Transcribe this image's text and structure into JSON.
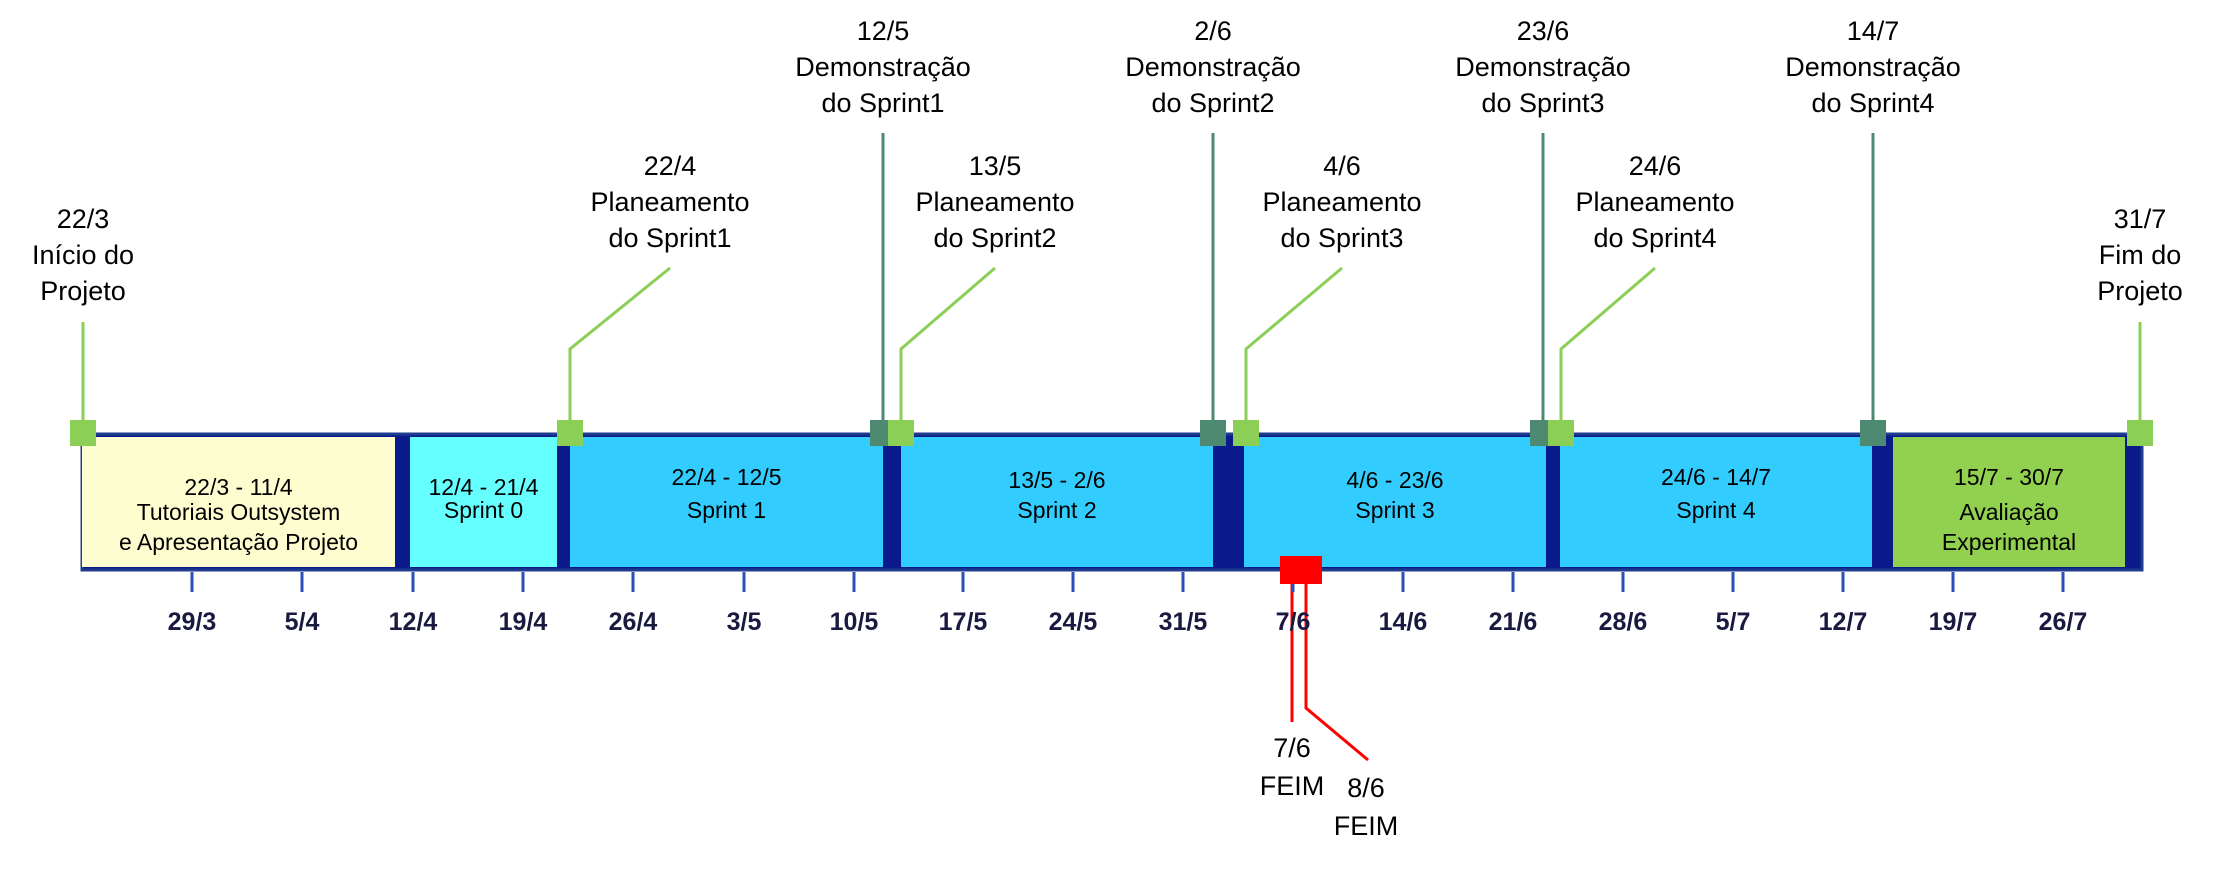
{
  "colors": {
    "bar_border": "#1f3c8f",
    "separator": "#0b1a8a",
    "tick": "#2b4fb5",
    "plan_marker": "#8ccf57",
    "demo_marker": "#4e8a72",
    "feim_marker": "#ff0000"
  },
  "bands": [
    {
      "date": "22/3 - 11/4",
      "label_lines": [
        "Tutoriais Outsystem",
        "e Apresentação Projeto"
      ],
      "fill": "#fdfdd0"
    },
    {
      "date": "12/4 - 21/4",
      "label_lines": [
        "Sprint 0"
      ],
      "fill": "#66ffff"
    },
    {
      "date": "22/4 - 12/5",
      "label_lines": [
        "Sprint 1"
      ],
      "fill": "#33ccff"
    },
    {
      "date": "13/5 - 2/6",
      "label_lines": [
        "Sprint 2"
      ],
      "fill": "#33ccff"
    },
    {
      "date": "4/6 - 23/6",
      "label_lines": [
        "Sprint 3"
      ],
      "fill": "#33ccff"
    },
    {
      "date": "24/6 - 14/7",
      "label_lines": [
        "Sprint 4"
      ],
      "fill": "#33ccff"
    },
    {
      "date": "15/7 - 30/7",
      "label_lines": [
        "Avaliação",
        "Experimental"
      ],
      "fill": "#92d050"
    }
  ],
  "ticks": [
    "29/3",
    "5/4",
    "12/4",
    "19/4",
    "26/4",
    "3/5",
    "10/5",
    "17/5",
    "24/5",
    "31/5",
    "7/6",
    "14/6",
    "21/6",
    "28/6",
    "5/7",
    "12/7",
    "19/7",
    "26/7"
  ],
  "milestones": [
    {
      "kind": "plan",
      "lines": [
        "22/3",
        "Início do",
        "Projeto"
      ]
    },
    {
      "kind": "plan",
      "lines": [
        "22/4",
        "Planeamento",
        "do Sprint1"
      ]
    },
    {
      "kind": "demo",
      "lines": [
        "12/5",
        "Demonstração",
        "do Sprint1"
      ]
    },
    {
      "kind": "plan",
      "lines": [
        "13/5",
        "Planeamento",
        "do Sprint2"
      ]
    },
    {
      "kind": "demo",
      "lines": [
        "2/6",
        "Demonstração",
        "do Sprint2"
      ]
    },
    {
      "kind": "plan",
      "lines": [
        "4/6",
        "Planeamento",
        "do Sprint3"
      ]
    },
    {
      "kind": "demo",
      "lines": [
        "23/6",
        "Demonstração",
        "do Sprint3"
      ]
    },
    {
      "kind": "plan",
      "lines": [
        "24/6",
        "Planeamento",
        "do Sprint4"
      ]
    },
    {
      "kind": "demo",
      "lines": [
        "14/7",
        "Demonstração",
        "do Sprint4"
      ]
    },
    {
      "kind": "plan",
      "lines": [
        "31/7",
        "Fim do",
        "Projeto"
      ]
    }
  ],
  "feim": [
    {
      "lines": [
        "7/6",
        "FEIM"
      ]
    },
    {
      "lines": [
        "8/6",
        "FEIM"
      ]
    }
  ]
}
